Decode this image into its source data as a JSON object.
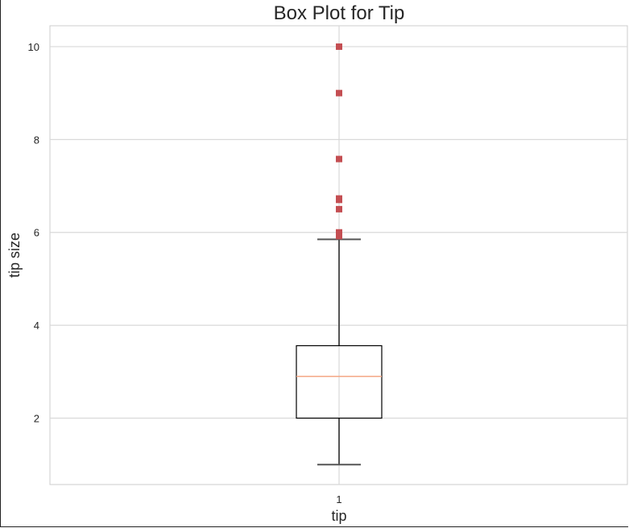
{
  "chart_data": {
    "type": "box",
    "title": "Box Plot for Tip",
    "xlabel": "tip",
    "ylabel": "tip size",
    "categories": [
      "1"
    ],
    "ylim": [
      0.57,
      10.45
    ],
    "yticks": [
      2,
      4,
      6,
      8,
      10
    ],
    "grid": true,
    "box": {
      "min": 1.0,
      "q1": 2.0,
      "median": 2.9,
      "q3": 3.56,
      "max": 5.85
    },
    "outliers": [
      10.0,
      9.0,
      7.58,
      6.73,
      6.7,
      6.5,
      6.0,
      5.92
    ],
    "colors": {
      "box": "#000000",
      "median": "#f4a582",
      "whisker": "#555555",
      "outlier": "#c44e52",
      "grid": "#d9d9d9",
      "spine": "#cccccc"
    }
  }
}
